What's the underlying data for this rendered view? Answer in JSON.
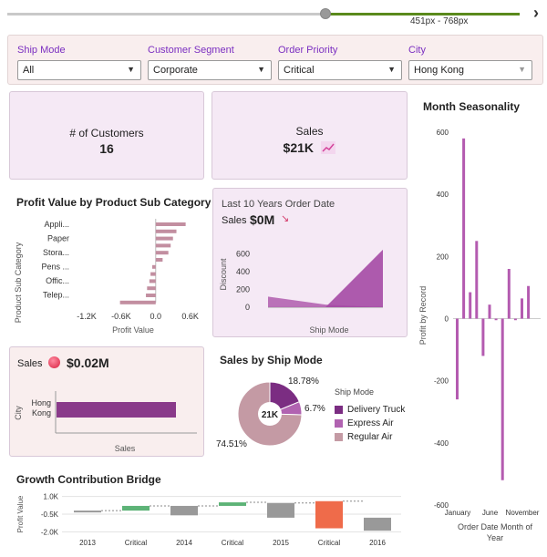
{
  "slider": {
    "range_label": "451px - 768px"
  },
  "filters": [
    {
      "label": "Ship Mode",
      "value": "All"
    },
    {
      "label": "Customer Segment",
      "value": "Corporate"
    },
    {
      "label": "Order Priority",
      "value": "Critical"
    },
    {
      "label": "City",
      "value": "Hong Kong"
    }
  ],
  "kpis": {
    "customers": {
      "title": "# of Customers",
      "value": "16"
    },
    "sales": {
      "title": "Sales",
      "value": "$21K"
    }
  },
  "profit_subcat": {
    "title": "Profit Value by Product Sub Category",
    "ylabel": "Product Sub Category",
    "xlabel": "Profit Value",
    "categories": [
      "Appli...",
      "Paper",
      "Stora...",
      "Pens ...",
      "Offic...",
      "Telep..."
    ],
    "x_ticks": [
      "-1.2K",
      "-0.6K",
      "0.0",
      "0.6K"
    ]
  },
  "order_date_card": {
    "title": "Last 10 Years Order Date",
    "sales_label": "Sales",
    "sales_value": "$0M",
    "ylabel": "Discount",
    "xlabel": "Ship Mode",
    "y_ticks": [
      "600",
      "400",
      "200",
      "0"
    ]
  },
  "city_sales": {
    "label": "Sales",
    "value": "$0.02M",
    "ylabel": "City",
    "xlabel": "Sales",
    "category": "Hong\nKong"
  },
  "ship_mode": {
    "title": "Sales by Ship Mode",
    "center": "21K",
    "legend_title": "Ship Mode",
    "slices": [
      {
        "name": "Delivery Truck",
        "pct_label": "18.78%",
        "color": "#7b2d82"
      },
      {
        "name": "Express Air",
        "pct_label": "6.7%",
        "color": "#b163b1"
      },
      {
        "name": "Regular Air",
        "pct_label": "74.51%",
        "color": "#c49aa4"
      }
    ]
  },
  "growth": {
    "title": "Growth Contribution Bridge",
    "ylabel": "Profit Value",
    "y_ticks": [
      "1.0K",
      "-0.5K",
      "-2.0K"
    ],
    "x_labels": [
      "2013",
      "Critical",
      "2014",
      "Critical",
      "2015",
      "Critical",
      "2016"
    ]
  },
  "month": {
    "title": "Month Seasonality",
    "ylabel": "Profit by Record",
    "xlabel": "Order Date Month of Year",
    "y_ticks": [
      "600",
      "400",
      "200",
      "0",
      "-200",
      "-400",
      "-600"
    ],
    "x_labels": [
      "January",
      "June",
      "November"
    ]
  },
  "chart_data": [
    {
      "type": "bar",
      "title": "Profit Value by Product Sub Category",
      "orientation": "horizontal",
      "categories": [
        "Appliances",
        "Paper",
        "Storage",
        "Pens",
        "Office",
        "Telephones",
        "",
        "",
        "",
        "",
        "",
        ""
      ],
      "values": [
        520,
        360,
        300,
        260,
        220,
        120,
        -60,
        -90,
        -110,
        -150,
        -170,
        -620
      ],
      "xlim": [
        -1200,
        700
      ]
    },
    {
      "type": "area",
      "title": "Last 10 Years Order Date",
      "series": [
        {
          "name": "a",
          "x": [
            0,
            1,
            2
          ],
          "values": [
            120,
            30,
            0
          ]
        },
        {
          "name": "b",
          "x": [
            0,
            1,
            2
          ],
          "values": [
            0,
            0,
            650
          ]
        }
      ],
      "ylim": [
        0,
        700
      ]
    },
    {
      "type": "bar",
      "title": "City Sales",
      "orientation": "horizontal",
      "categories": [
        "Hong Kong"
      ],
      "values": [
        21000
      ]
    },
    {
      "type": "pie",
      "title": "Sales by Ship Mode",
      "categories": [
        "Delivery Truck",
        "Express Air",
        "Regular Air"
      ],
      "values": [
        18.78,
        6.7,
        74.51
      ]
    },
    {
      "type": "bar",
      "title": "Growth Contribution Bridge",
      "categories": [
        "2013",
        "Critical",
        "2014",
        "Critical",
        "2015",
        "Critical",
        "2016"
      ],
      "ranges": [
        [
          -0.35,
          -0.2
        ],
        [
          -0.2,
          0.2
        ],
        [
          -0.6,
          0.2
        ],
        [
          0.2,
          0.5
        ],
        [
          -0.8,
          0.45
        ],
        [
          -1.7,
          0.6
        ],
        [
          -1.9,
          -0.8
        ]
      ],
      "colors": [
        "#999999",
        "#5db377",
        "#999999",
        "#5db377",
        "#999999",
        "#ef6b4a",
        "#999999"
      ],
      "ylim": [
        -2.2,
        1.2
      ]
    },
    {
      "type": "bar",
      "title": "Month Seasonality",
      "values": [
        -260,
        580,
        85,
        250,
        -120,
        45,
        -5,
        -520,
        160,
        -5,
        65,
        105
      ],
      "ylim": [
        -600,
        650
      ]
    }
  ]
}
